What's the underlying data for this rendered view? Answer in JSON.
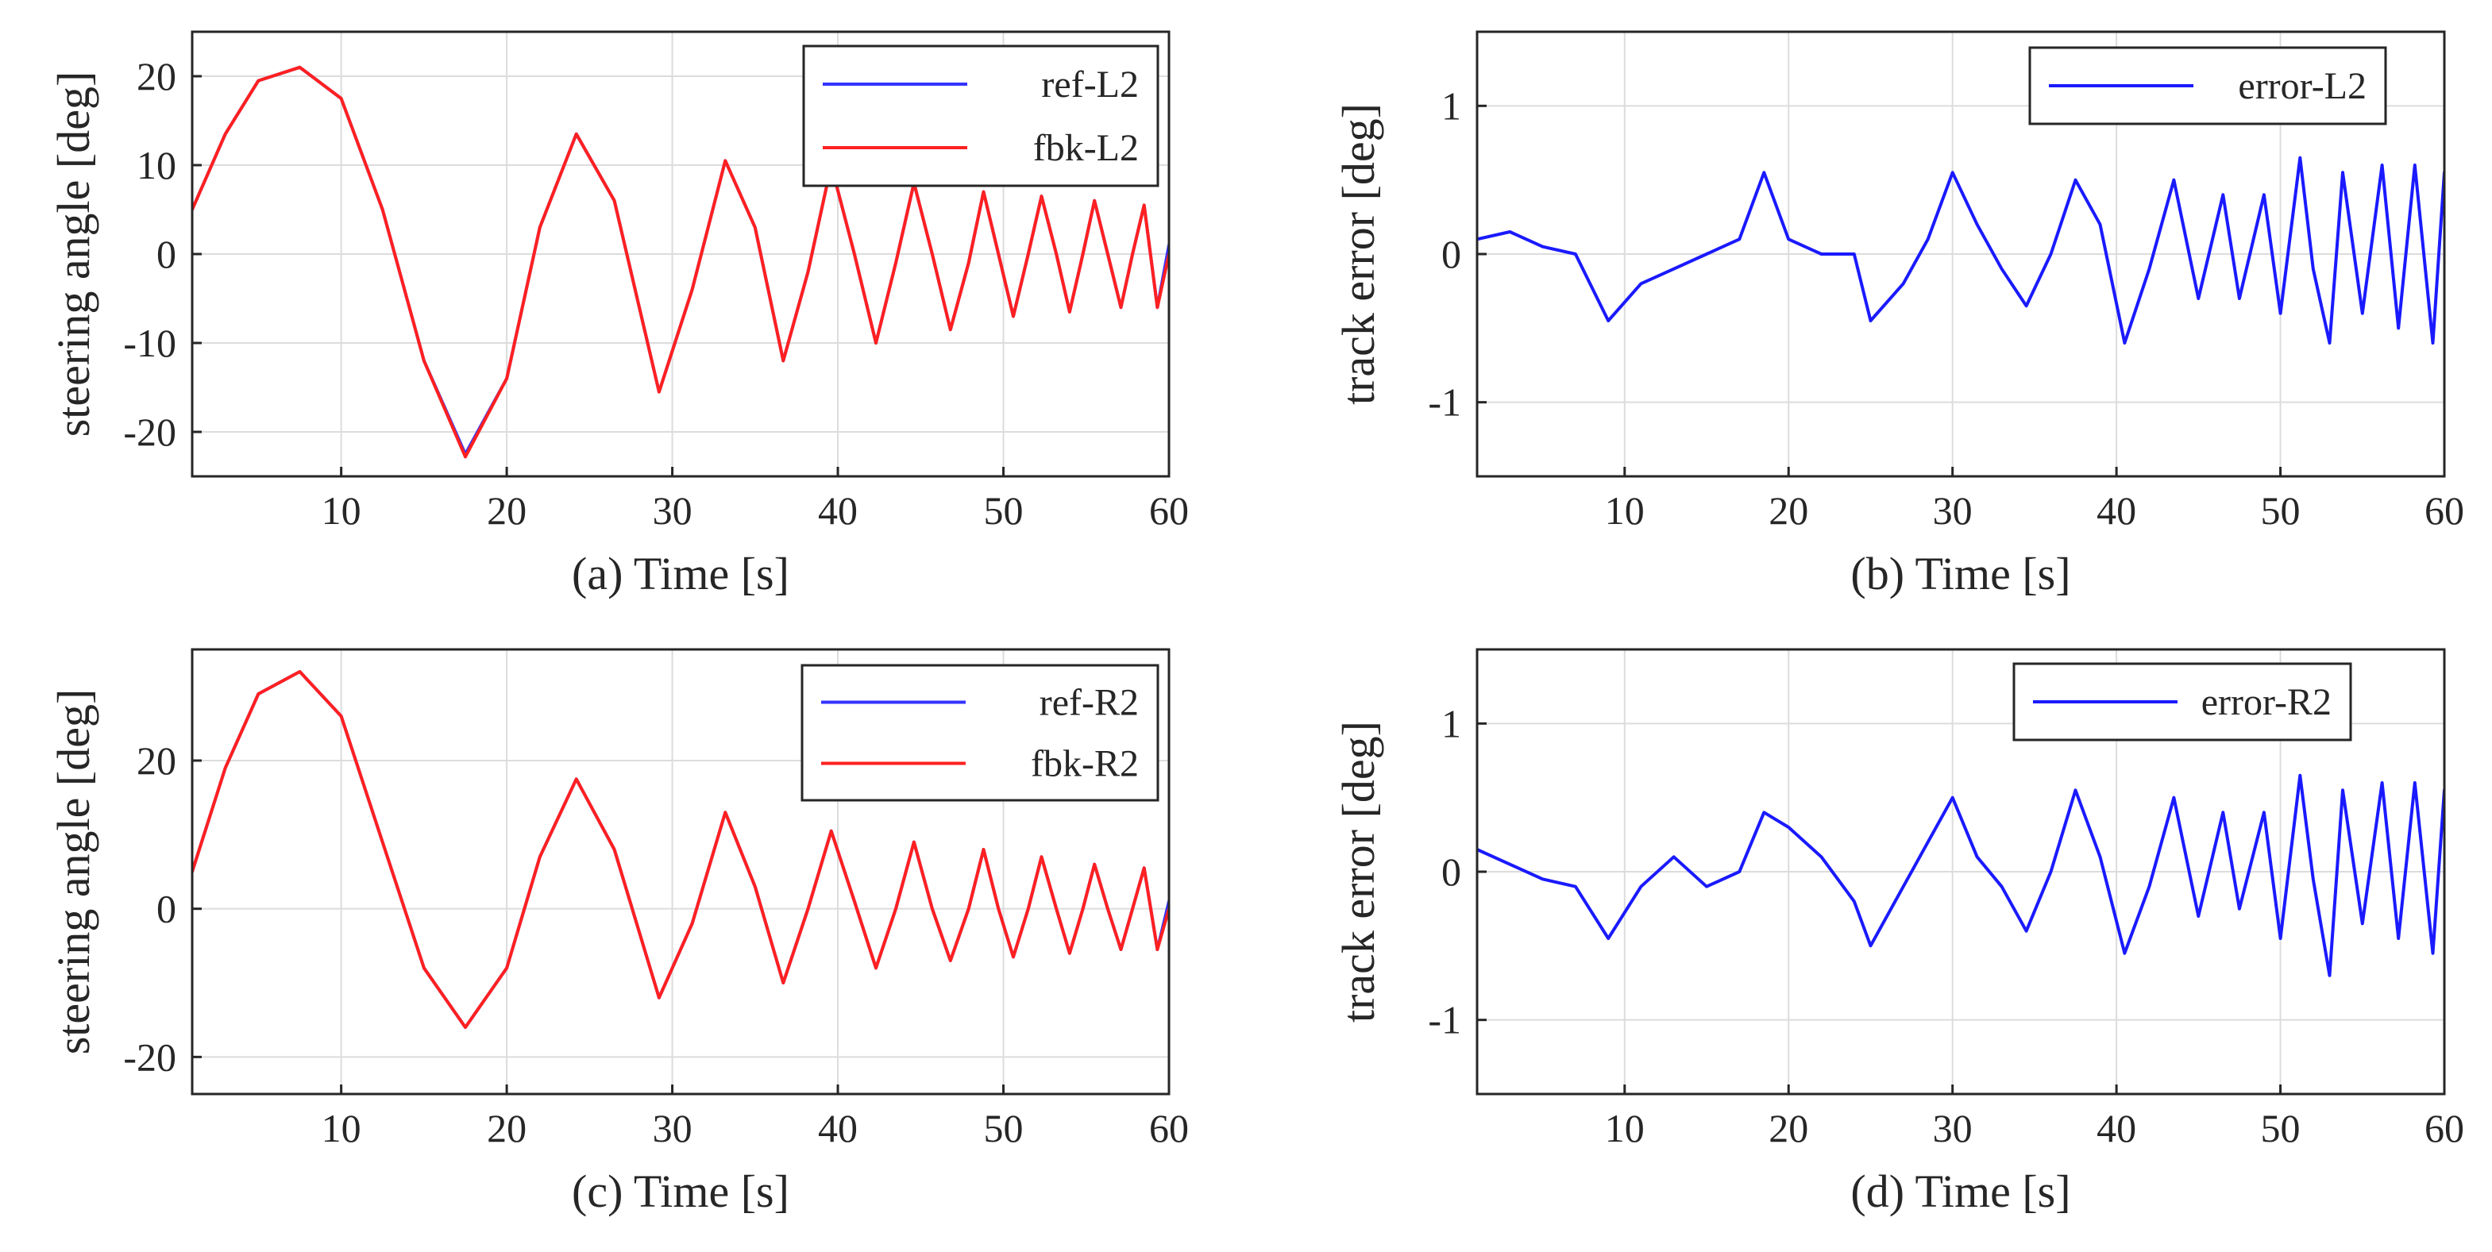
{
  "chart_data": [
    {
      "id": "a",
      "type": "line",
      "xlabel": "(a) Time [s]",
      "ylabel": "steering angle [deg]",
      "xlim": [
        1,
        60
      ],
      "ylim": [
        -25,
        25
      ],
      "xticks": [
        10,
        20,
        30,
        40,
        50,
        60
      ],
      "yticks": [
        -20,
        -10,
        0,
        10,
        20
      ],
      "grid": true,
      "legend_position": "top-right",
      "series": [
        {
          "name": "ref-L2",
          "color": "#3333ff",
          "x": [
            1,
            3,
            5,
            7.5,
            10,
            12.5,
            15,
            17.5,
            20,
            22,
            24.2,
            26.5,
            29.2,
            31.2,
            33.2,
            35,
            36.7,
            38.2,
            39.6,
            41,
            42.3,
            43.5,
            44.6,
            45.7,
            46.8,
            47.9,
            48.8,
            49.7,
            50.6,
            51.5,
            52.3,
            53.2,
            54.0,
            54.8,
            55.5,
            56.3,
            57.1,
            57.8,
            58.5,
            59.3,
            60
          ],
          "values": [
            5,
            13.5,
            19.5,
            21,
            17.5,
            5,
            -12,
            -22.5,
            -14,
            3,
            13.5,
            6,
            -15.5,
            -4,
            10.5,
            3,
            -12,
            -2,
            10,
            0,
            -10,
            -1,
            8,
            0,
            -8.5,
            -1,
            7,
            0,
            -7,
            0,
            6.5,
            0,
            -6.5,
            0,
            6,
            0,
            -6,
            0,
            5.5,
            -6,
            1
          ]
        },
        {
          "name": "fbk-L2",
          "color": "#ff2020",
          "x": [
            1,
            3,
            5,
            7.5,
            10,
            12.5,
            15,
            17.5,
            20,
            22,
            24.2,
            26.5,
            29.2,
            31.2,
            33.2,
            35,
            36.7,
            38.2,
            39.6,
            41,
            42.3,
            43.5,
            44.6,
            45.7,
            46.8,
            47.9,
            48.8,
            49.7,
            50.6,
            51.5,
            52.3,
            53.2,
            54.0,
            54.8,
            55.5,
            56.3,
            57.1,
            57.8,
            58.5,
            59.3,
            60
          ],
          "values": [
            5,
            13.5,
            19.5,
            21,
            17.5,
            5,
            -12,
            -22.8,
            -14,
            3,
            13.5,
            6,
            -15.5,
            -4,
            10.5,
            3,
            -12,
            -2,
            10,
            0,
            -10,
            -1,
            8,
            0,
            -8.5,
            -1,
            7,
            0,
            -7,
            0,
            6.5,
            0,
            -6.5,
            0,
            6,
            0,
            -6,
            0,
            5.5,
            -6,
            0
          ]
        }
      ]
    },
    {
      "id": "b",
      "type": "line",
      "xlabel": "(b) Time [s]",
      "ylabel": "track error [deg]",
      "xlim": [
        1,
        60
      ],
      "ylim": [
        -1.5,
        1.5
      ],
      "xticks": [
        10,
        20,
        30,
        40,
        50,
        60
      ],
      "yticks": [
        -1,
        0,
        1
      ],
      "grid": true,
      "legend_position": "top-right",
      "series": [
        {
          "name": "error-L2",
          "color": "#1a1aff",
          "x": [
            1,
            3,
            5,
            7,
            9,
            11,
            13,
            15,
            17,
            18.5,
            20,
            22,
            24,
            25,
            27,
            28.5,
            30,
            31.5,
            33,
            34.5,
            36,
            37.5,
            39,
            40.5,
            42,
            43.5,
            45,
            46.5,
            47.5,
            49,
            50,
            51.2,
            52,
            53,
            53.8,
            55,
            56.2,
            57.2,
            58.2,
            59.3,
            60
          ],
          "values": [
            0.1,
            0.15,
            0.05,
            0.0,
            -0.45,
            -0.2,
            -0.1,
            0.0,
            0.1,
            0.55,
            0.1,
            0.0,
            0.0,
            -0.45,
            -0.2,
            0.1,
            0.55,
            0.2,
            -0.1,
            -0.35,
            0.0,
            0.5,
            0.2,
            -0.6,
            -0.1,
            0.5,
            -0.3,
            0.4,
            -0.3,
            0.4,
            -0.4,
            0.65,
            -0.1,
            -0.6,
            0.55,
            -0.4,
            0.6,
            -0.5,
            0.6,
            -0.6,
            0.55
          ]
        }
      ]
    },
    {
      "id": "c",
      "type": "line",
      "xlabel": "(c) Time [s]",
      "ylabel": "steering angle [deg]",
      "xlim": [
        1,
        60
      ],
      "ylim": [
        -25,
        35
      ],
      "xticks": [
        10,
        20,
        30,
        40,
        50,
        60
      ],
      "yticks": [
        -20,
        0,
        20
      ],
      "grid": true,
      "legend_position": "top-right",
      "series": [
        {
          "name": "ref-R2",
          "color": "#3333ff",
          "x": [
            1,
            3,
            5,
            7.5,
            10,
            12.5,
            15,
            17.5,
            20,
            22,
            24.2,
            26.5,
            29.2,
            31.2,
            33.2,
            35,
            36.7,
            38.2,
            39.6,
            41,
            42.3,
            43.5,
            44.6,
            45.7,
            46.8,
            47.9,
            48.8,
            49.7,
            50.6,
            51.5,
            52.3,
            53.2,
            54.0,
            54.8,
            55.5,
            56.3,
            57.1,
            57.8,
            58.5,
            59.3,
            60
          ],
          "values": [
            5,
            19,
            29,
            32,
            26,
            9,
            -8,
            -16,
            -8,
            7,
            17.5,
            8,
            -12,
            -2,
            13,
            3,
            -10,
            0,
            10.5,
            1,
            -8,
            0,
            9,
            0,
            -7,
            0,
            8,
            0,
            -6.5,
            0,
            7,
            0,
            -6,
            0,
            6,
            0,
            -5.5,
            0,
            5.5,
            -5.5,
            1
          ]
        },
        {
          "name": "fbk-R2",
          "color": "#ff2020",
          "x": [
            1,
            3,
            5,
            7.5,
            10,
            12.5,
            15,
            17.5,
            20,
            22,
            24.2,
            26.5,
            29.2,
            31.2,
            33.2,
            35,
            36.7,
            38.2,
            39.6,
            41,
            42.3,
            43.5,
            44.6,
            45.7,
            46.8,
            47.9,
            48.8,
            49.7,
            50.6,
            51.5,
            52.3,
            53.2,
            54.0,
            54.8,
            55.5,
            56.3,
            57.1,
            57.8,
            58.5,
            59.3,
            60
          ],
          "values": [
            5,
            19,
            29,
            32,
            26,
            9,
            -8,
            -16,
            -8,
            7,
            17.5,
            8,
            -12,
            -2,
            13,
            3,
            -10,
            0,
            10.5,
            1,
            -8,
            0,
            9,
            0,
            -7,
            0,
            8,
            0,
            -6.5,
            0,
            7,
            0,
            -6,
            0,
            6,
            0,
            -5.5,
            0,
            5.5,
            -5.5,
            0
          ]
        }
      ]
    },
    {
      "id": "d",
      "type": "line",
      "xlabel": "(d) Time [s]",
      "ylabel": "track error [deg]",
      "xlim": [
        1,
        60
      ],
      "ylim": [
        -1.5,
        1.5
      ],
      "xticks": [
        10,
        20,
        30,
        40,
        50,
        60
      ],
      "yticks": [
        -1,
        0,
        1
      ],
      "grid": true,
      "legend_position": "top-right",
      "series": [
        {
          "name": "error-R2",
          "color": "#1a1aff",
          "x": [
            1,
            3,
            5,
            7,
            9,
            11,
            13,
            15,
            17,
            18.5,
            20,
            22,
            24,
            25,
            27,
            28.5,
            30,
            31.5,
            33,
            34.5,
            36,
            37.5,
            39,
            40.5,
            42,
            43.5,
            45,
            46.5,
            47.5,
            49,
            50,
            51.2,
            52,
            53,
            53.8,
            55,
            56.2,
            57.2,
            58.2,
            59.3,
            60
          ],
          "values": [
            0.15,
            0.05,
            -0.05,
            -0.1,
            -0.45,
            -0.1,
            0.1,
            -0.1,
            0.0,
            0.4,
            0.3,
            0.1,
            -0.2,
            -0.5,
            -0.1,
            0.2,
            0.5,
            0.1,
            -0.1,
            -0.4,
            0.0,
            0.55,
            0.1,
            -0.55,
            -0.1,
            0.5,
            -0.3,
            0.4,
            -0.25,
            0.4,
            -0.45,
            0.65,
            -0.05,
            -0.7,
            0.55,
            -0.35,
            0.6,
            -0.45,
            0.6,
            -0.55,
            0.55
          ]
        }
      ]
    }
  ]
}
